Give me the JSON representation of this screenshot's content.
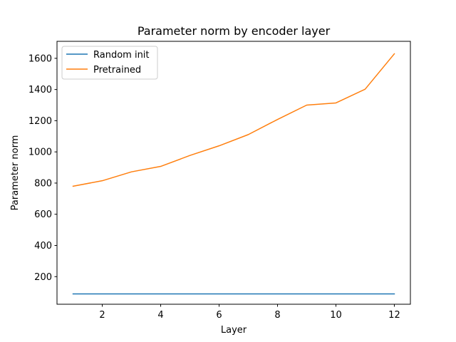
{
  "chart_data": {
    "type": "line",
    "title": "Parameter norm by encoder layer",
    "xlabel": "Layer",
    "ylabel": "Parameter norm",
    "x": [
      1,
      2,
      3,
      4,
      5,
      6,
      7,
      8,
      9,
      10,
      11,
      12
    ],
    "xlim": [
      0.45,
      12.55
    ],
    "ylim": [
      23,
      1709
    ],
    "xticks": [
      2,
      4,
      6,
      8,
      10,
      12
    ],
    "yticks": [
      200,
      400,
      600,
      800,
      1000,
      1200,
      1400,
      1600
    ],
    "grid": false,
    "legend_position": "upper-left",
    "series": [
      {
        "name": "Random init",
        "color": "#1f77b4",
        "values": [
          89,
          89,
          89,
          89,
          89,
          89,
          89,
          89,
          89,
          89,
          89,
          89
        ]
      },
      {
        "name": "Pretrained",
        "color": "#ff7f0e",
        "values": [
          780,
          815,
          872,
          907,
          977,
          1039,
          1111,
          1208,
          1300,
          1314,
          1402,
          1629
        ]
      }
    ]
  }
}
